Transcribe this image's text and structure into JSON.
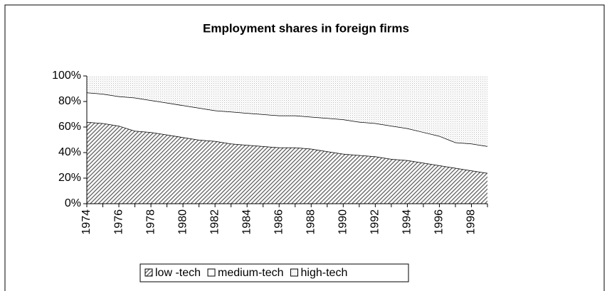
{
  "chart_data": {
    "type": "stacked-area",
    "title": "Employment shares in foreign firms",
    "categories": [
      "1974",
      null,
      "1976",
      null,
      "1978",
      null,
      "1980",
      null,
      "1982",
      null,
      "1984",
      null,
      "1986",
      null,
      "1988",
      null,
      "1990",
      null,
      "1992",
      null,
      "1994",
      null,
      "1996",
      null,
      "1998",
      null
    ],
    "series": [
      {
        "name": "low -tech",
        "color": "#555555",
        "pattern": "hatch",
        "values": [
          64,
          63,
          61,
          57,
          56,
          54,
          52,
          50,
          49,
          47,
          46,
          45,
          44,
          44,
          43,
          41,
          39,
          38,
          37,
          35,
          34,
          32,
          30,
          28,
          26,
          24
        ]
      },
      {
        "name": "medium-tech",
        "color": "#ffffff",
        "pattern": "solid",
        "values": [
          23,
          23,
          23,
          26,
          25,
          25,
          25,
          25,
          24,
          25,
          25,
          25,
          25,
          25,
          25,
          26,
          27,
          26,
          26,
          26,
          25,
          24,
          23,
          20,
          21,
          21
        ]
      },
      {
        "name": "high-tech",
        "color": "#bbbbbb",
        "pattern": "dots",
        "values": [
          13,
          14,
          16,
          17,
          19,
          21,
          23,
          25,
          27,
          28,
          29,
          30,
          31,
          31,
          32,
          33,
          34,
          36,
          37,
          39,
          41,
          44,
          47,
          52,
          53,
          55
        ]
      }
    ],
    "ylim": [
      0,
      100
    ],
    "yticks": [
      {
        "value": 0,
        "label": "0%"
      },
      {
        "value": 20,
        "label": "20%"
      },
      {
        "value": 40,
        "label": "40%"
      },
      {
        "value": 60,
        "label": "60%"
      },
      {
        "value": 80,
        "label": "80%"
      },
      {
        "value": 100,
        "label": "100%"
      }
    ]
  }
}
